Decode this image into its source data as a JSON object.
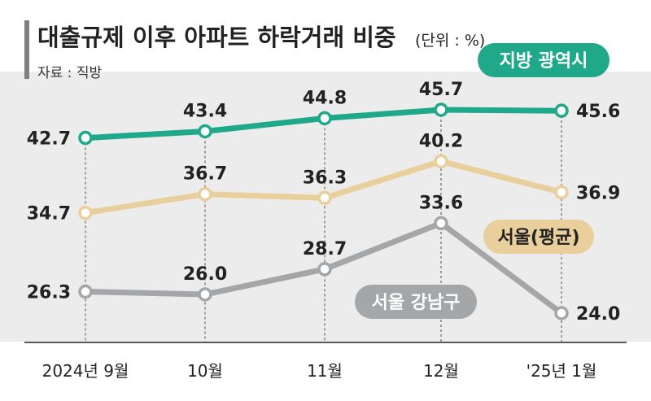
{
  "header": {
    "title": "대출규제 이후 아파트 하락거래 비중",
    "unit": "(단위 : %)",
    "source": "자료 : 직방"
  },
  "colors": {
    "background": "#ffffff",
    "plot_background": "#ececed",
    "accent_bar": "#7d7f80",
    "axis_line": "#5a5a5a",
    "guide_line": "#707070",
    "text": "#222222",
    "series": [
      "#1fa88a",
      "#e9cf9b",
      "#a5a6a8"
    ],
    "series_label_text": [
      "#ffffff",
      "#222222",
      "#ffffff"
    ]
  },
  "chart_data": {
    "type": "line",
    "title": "대출규제 이후 아파트 하락거래 비중",
    "unit": "%",
    "x": [
      "2024년 9월",
      "10월",
      "11월",
      "12월",
      "'25년 1월"
    ],
    "series": [
      {
        "name": "지방 광역시",
        "values": [
          42.7,
          43.4,
          44.8,
          45.7,
          45.6
        ]
      },
      {
        "name": "서울(평균)",
        "values": [
          34.7,
          36.7,
          36.3,
          40.2,
          36.9
        ]
      },
      {
        "name": "서울 강남구",
        "values": [
          26.3,
          26.0,
          28.7,
          33.6,
          24.0
        ]
      }
    ],
    "grid": false,
    "vertical_guides": true
  }
}
